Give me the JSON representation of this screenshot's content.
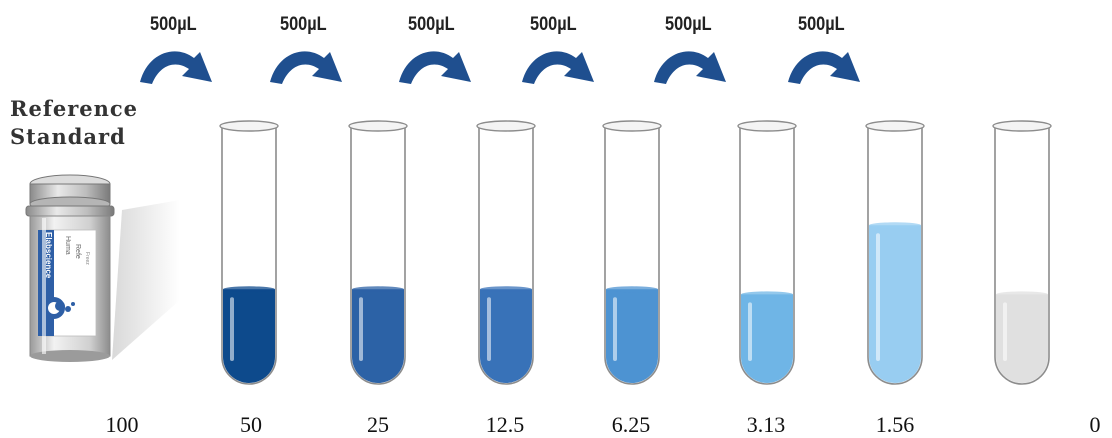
{
  "reference": {
    "title_line1": "Reference",
    "title_line2": "Standard",
    "vial_brand": "Elabscience",
    "vial_label_lines": [
      "Huma",
      "Refe",
      "Freez"
    ]
  },
  "transfer_labels": [
    "500µL",
    "500µL",
    "500µL",
    "500µL",
    "500µL",
    "500µL"
  ],
  "arrow_color": "#1f4f8f",
  "concentrations": [
    "100",
    "50",
    "25",
    "12.5",
    "6.25",
    "3.13",
    "1.56",
    "0"
  ],
  "tubes": [
    {
      "color": "#0d4a8c",
      "fill": 0.37
    },
    {
      "color": "#2c62a6",
      "fill": 0.37
    },
    {
      "color": "#3872b8",
      "fill": 0.37
    },
    {
      "color": "#4d93d2",
      "fill": 0.37
    },
    {
      "color": "#6fb5e6",
      "fill": 0.35
    },
    {
      "color": "#98cdf1",
      "fill": 0.62
    },
    {
      "color": "#e0e0e0",
      "fill": 0.35
    }
  ]
}
